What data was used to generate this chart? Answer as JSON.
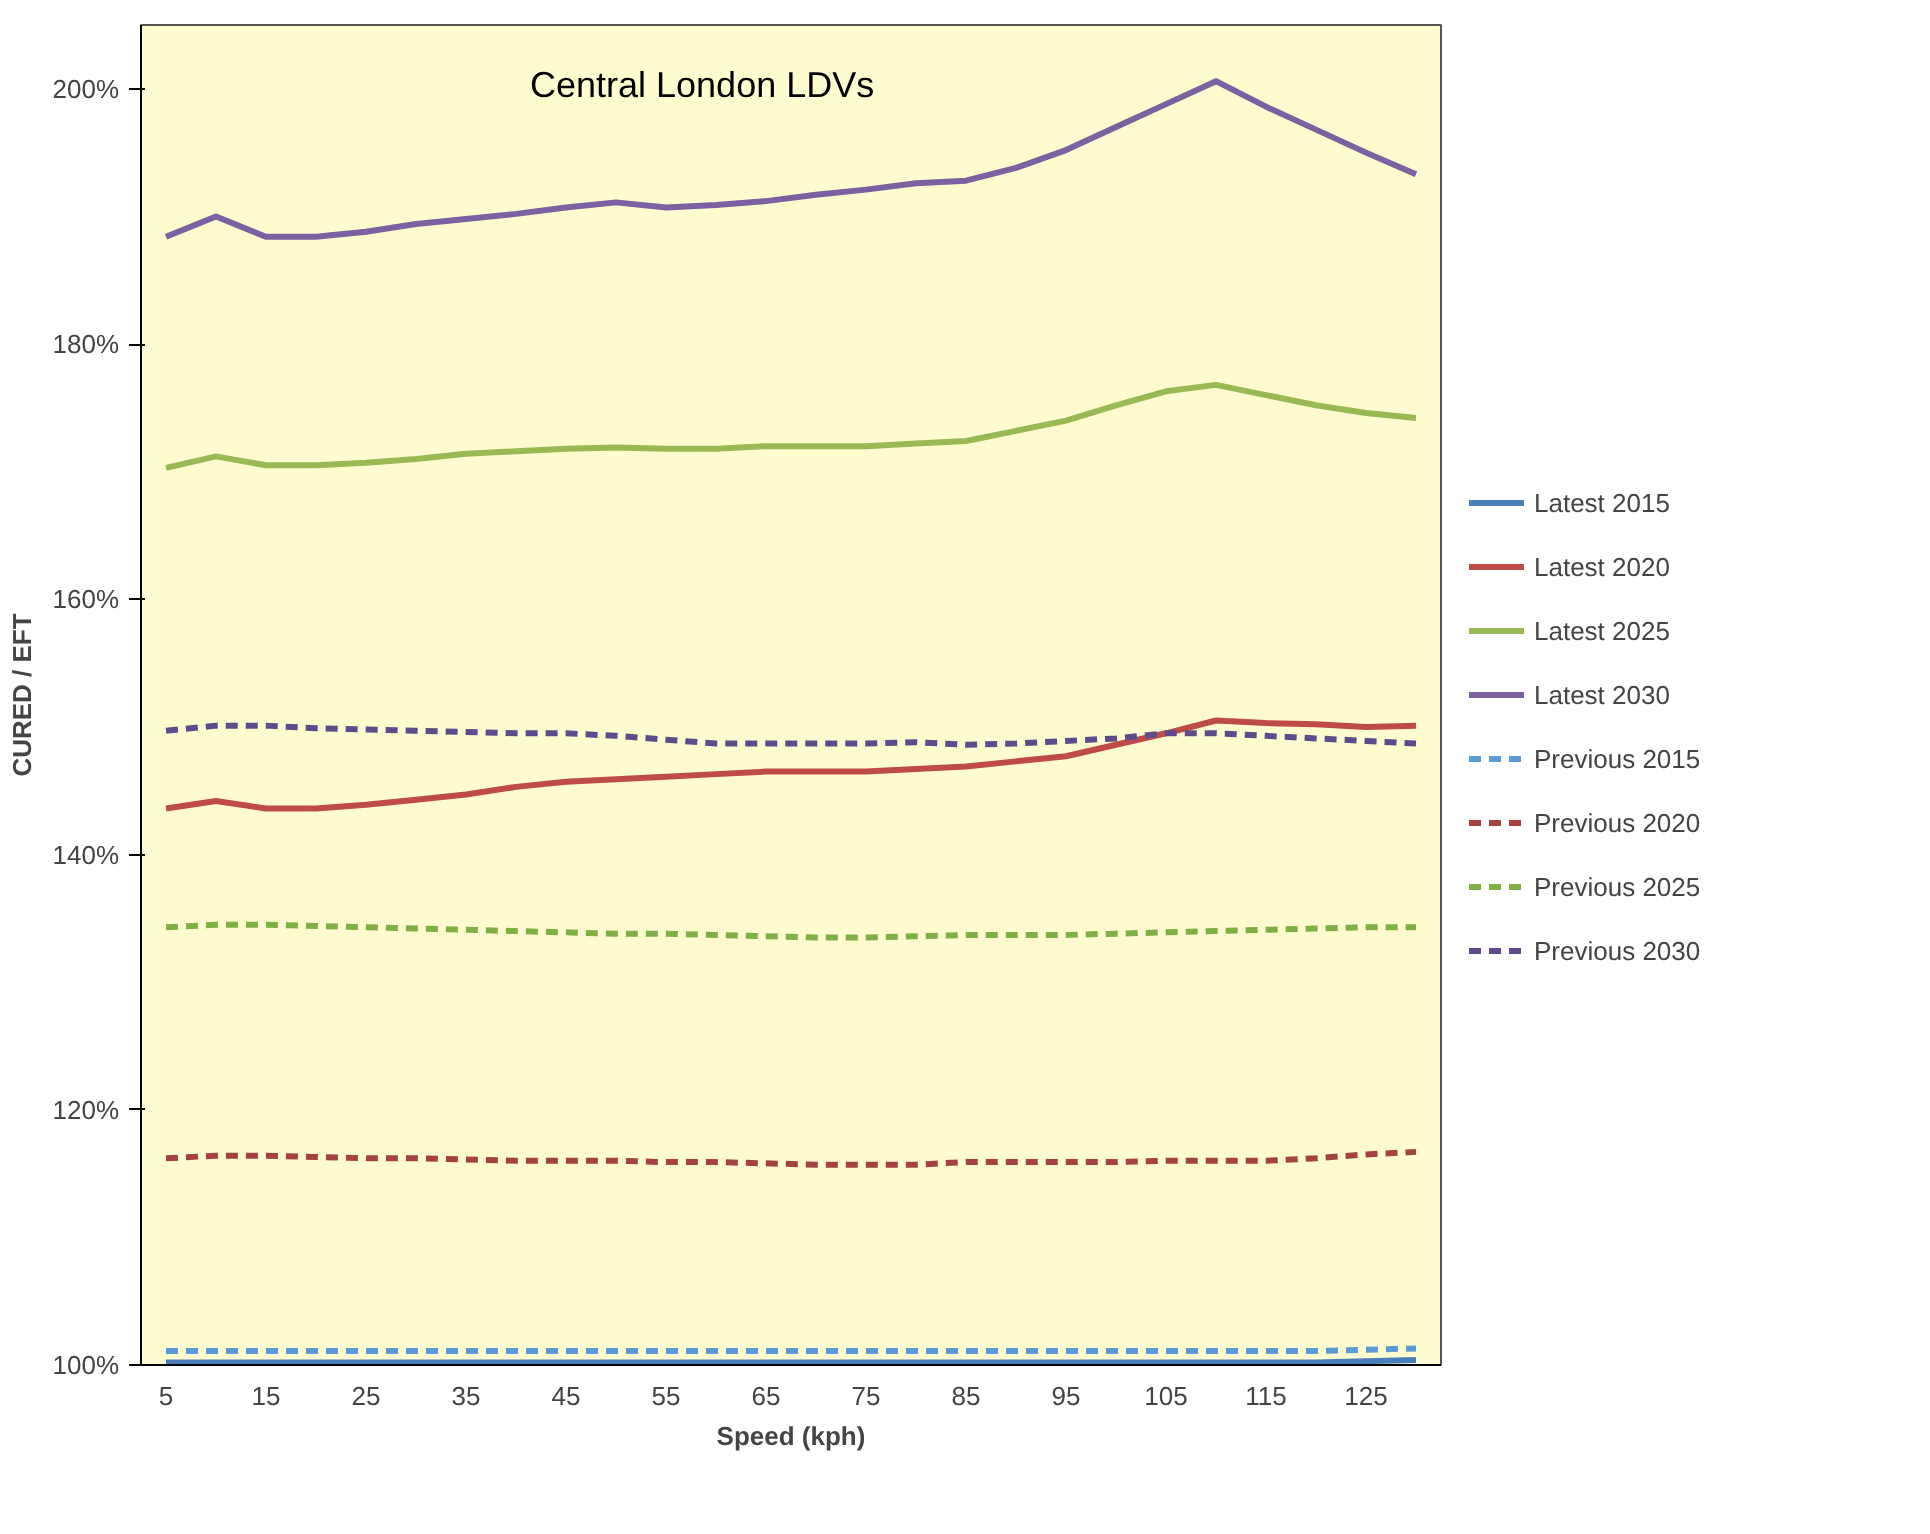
{
  "chart_data": {
    "type": "line",
    "title": "Central London LDVs",
    "xlabel": "Speed (kph)",
    "ylabel": "CURED / EFT",
    "categories": [
      "5",
      null,
      "15",
      null,
      "25",
      null,
      "35",
      null,
      "45",
      null,
      "55",
      null,
      "65",
      null,
      "75",
      null,
      "85",
      null,
      "95",
      null,
      "105",
      null,
      "115",
      null,
      "125",
      null
    ],
    "ylim": [
      100,
      205
    ],
    "yticks": [
      {
        "value": 100,
        "label": "100%"
      },
      {
        "value": 120,
        "label": "120%"
      },
      {
        "value": 140,
        "label": "140%"
      },
      {
        "value": 160,
        "label": "160%"
      },
      {
        "value": 180,
        "label": "180%"
      },
      {
        "value": 200,
        "label": "200%"
      }
    ],
    "grid": false,
    "legend": "right",
    "marker": "none",
    "series": [
      {
        "name": "Latest 2015",
        "color": "#4a7ebb",
        "line_style": "solid",
        "values": [
          100.2,
          100.2,
          100.2,
          100.2,
          100.2,
          100.2,
          100.2,
          100.2,
          100.2,
          100.2,
          100.2,
          100.2,
          100.2,
          100.2,
          100.2,
          100.2,
          100.2,
          100.2,
          100.2,
          100.2,
          100.2,
          100.2,
          100.2,
          100.2,
          100.3,
          100.4
        ]
      },
      {
        "name": "Latest 2020",
        "color": "#be4b48",
        "line_style": "solid",
        "values": [
          143.6,
          144.2,
          143.6,
          143.6,
          143.9,
          144.3,
          144.7,
          145.3,
          145.7,
          145.9,
          146.1,
          146.3,
          146.5,
          146.5,
          146.5,
          146.7,
          146.9,
          147.3,
          147.7,
          148.6,
          149.5,
          150.5,
          150.3,
          150.2,
          150.0,
          150.1
        ]
      },
      {
        "name": "Latest 2025",
        "color": "#98b954",
        "line_style": "solid",
        "values": [
          170.3,
          171.2,
          170.5,
          170.5,
          170.7,
          171.0,
          171.4,
          171.6,
          171.8,
          171.9,
          171.8,
          171.8,
          172.0,
          172.0,
          172.0,
          172.2,
          172.4,
          173.2,
          174.0,
          175.2,
          176.3,
          176.8,
          176.0,
          175.2,
          174.6,
          174.2
        ]
      },
      {
        "name": "Latest 2030",
        "color": "#7d60a0",
        "line_style": "solid",
        "values": [
          188.4,
          190.0,
          188.4,
          188.4,
          188.8,
          189.4,
          189.8,
          190.2,
          190.7,
          191.1,
          190.7,
          190.9,
          191.2,
          191.7,
          192.1,
          192.6,
          192.8,
          193.8,
          195.2,
          197.0,
          198.8,
          200.6,
          198.6,
          196.8,
          195.0,
          193.3
        ]
      },
      {
        "name": "Previous 2015",
        "color": "#5b9bd5",
        "line_style": "dashed",
        "values": [
          101.1,
          101.1,
          101.1,
          101.1,
          101.1,
          101.1,
          101.1,
          101.1,
          101.1,
          101.1,
          101.1,
          101.1,
          101.1,
          101.1,
          101.1,
          101.1,
          101.1,
          101.1,
          101.1,
          101.1,
          101.1,
          101.1,
          101.1,
          101.1,
          101.2,
          101.3
        ]
      },
      {
        "name": "Previous 2020",
        "color": "#a5423f",
        "line_style": "dashed",
        "values": [
          116.2,
          116.4,
          116.4,
          116.3,
          116.2,
          116.2,
          116.1,
          116.0,
          116.0,
          116.0,
          115.9,
          115.9,
          115.8,
          115.7,
          115.7,
          115.7,
          115.9,
          115.9,
          115.9,
          115.9,
          116.0,
          116.0,
          116.0,
          116.2,
          116.5,
          116.7
        ]
      },
      {
        "name": "Previous 2025",
        "color": "#7faf45",
        "line_style": "dashed",
        "values": [
          134.3,
          134.5,
          134.5,
          134.4,
          134.3,
          134.2,
          134.1,
          134.0,
          133.9,
          133.8,
          133.8,
          133.7,
          133.6,
          133.5,
          133.5,
          133.6,
          133.7,
          133.7,
          133.7,
          133.8,
          133.9,
          134.0,
          134.1,
          134.2,
          134.3,
          134.3
        ]
      },
      {
        "name": "Previous 2030",
        "color": "#5f4b8b",
        "line_style": "dashed",
        "values": [
          149.7,
          150.1,
          150.1,
          149.9,
          149.8,
          149.7,
          149.6,
          149.5,
          149.5,
          149.3,
          149.0,
          148.7,
          148.7,
          148.7,
          148.7,
          148.8,
          148.6,
          148.7,
          148.9,
          149.1,
          149.5,
          149.5,
          149.3,
          149.1,
          148.9,
          148.7
        ]
      }
    ]
  }
}
